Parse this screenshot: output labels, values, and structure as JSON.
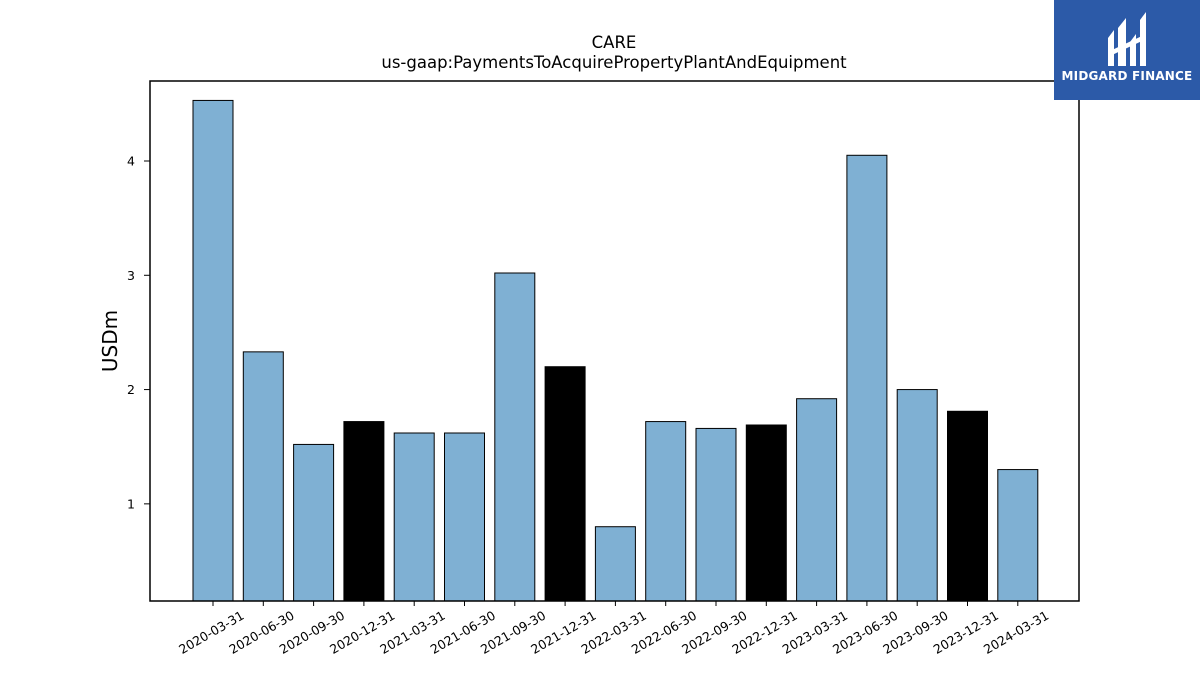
{
  "chart_data": {
    "type": "bar",
    "title": "CARE",
    "subtitle": "us-gaap:PaymentsToAcquirePropertyPlantAndEquipment",
    "xlabel": "",
    "ylabel": "USDm",
    "ylim": [
      0.15,
      4.7
    ],
    "yticks": [
      1,
      2,
      3,
      4
    ],
    "categories": [
      "2020-03-31",
      "2020-06-30",
      "2020-09-30",
      "2020-12-31",
      "2021-03-31",
      "2021-06-30",
      "2021-09-30",
      "2021-12-31",
      "2022-03-31",
      "2022-06-30",
      "2022-09-30",
      "2022-12-31",
      "2023-03-31",
      "2023-06-30",
      "2023-09-30",
      "2023-12-31",
      "2024-03-31"
    ],
    "values": [
      4.53,
      2.33,
      1.52,
      1.72,
      1.62,
      1.62,
      3.02,
      2.2,
      0.8,
      1.72,
      1.66,
      1.69,
      1.92,
      4.05,
      2.0,
      1.81,
      1.3
    ],
    "highlight": [
      false,
      false,
      false,
      true,
      false,
      false,
      false,
      true,
      false,
      false,
      false,
      true,
      false,
      false,
      false,
      true,
      false
    ],
    "colors": {
      "bar": "#7fb0d3",
      "highlight": "#000000",
      "edge": "#000000"
    },
    "grid": false,
    "legend": "none"
  },
  "logo": {
    "text": "MIDGARD FINANCE",
    "icon": "midgard-logo-icon",
    "background": "#2c5aa8"
  }
}
